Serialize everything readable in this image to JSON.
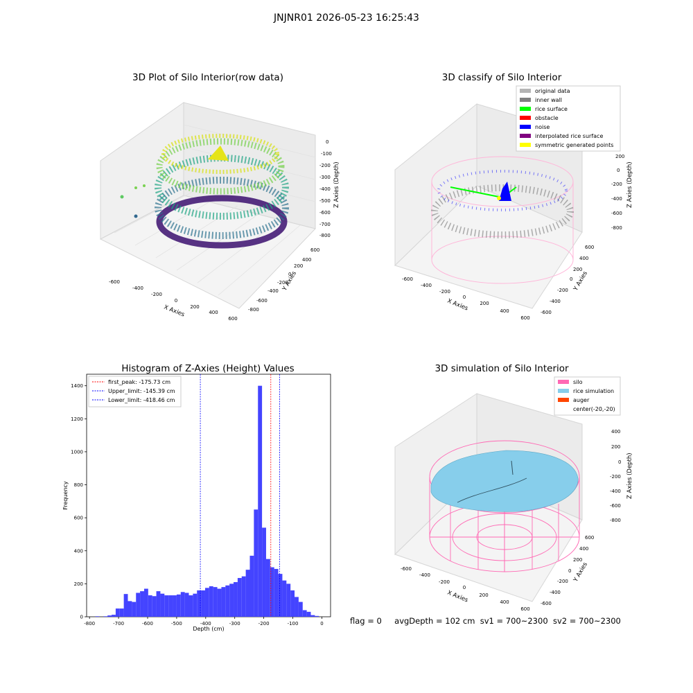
{
  "suptitle": "JNJNR01 2026-05-23 16:25:43",
  "panels": {
    "raw": {
      "title": "3D Plot of Silo Interior(row data)",
      "xlabel": "X Axies",
      "ylabel": "Y Axies",
      "zlabel": "Z Axies (Depth)",
      "xticks": [
        "-600",
        "-400",
        "-200",
        "0",
        "200",
        "400",
        "600"
      ],
      "yticks": [
        "600",
        "400",
        "200",
        "0",
        "-200",
        "-400",
        "-600",
        "-800"
      ],
      "zticks": [
        "0",
        "-100",
        "-200",
        "-300",
        "-400",
        "-500",
        "-600",
        "-700",
        "-800"
      ],
      "colormap": "viridis"
    },
    "classify": {
      "title": "3D classify of Silo Interior",
      "xlabel": "X Axies",
      "ylabel": "Y Axies",
      "zlabel": "Z Axies (Depth)",
      "xticks": [
        "-600",
        "-400",
        "-200",
        "0",
        "200",
        "400",
        "600"
      ],
      "yticks": [
        "600",
        "400",
        "200",
        "0",
        "-200",
        "-400",
        "-600"
      ],
      "zticks": [
        "200",
        "0",
        "-200",
        "-400",
        "-600",
        "-800"
      ],
      "legend": [
        {
          "label": "original data",
          "color": "#b4b4b4"
        },
        {
          "label": "inner wall",
          "color": "#808080"
        },
        {
          "label": "rice surface",
          "color": "#00ff00"
        },
        {
          "label": "obstacle",
          "color": "#ff0000"
        },
        {
          "label": "noise",
          "color": "#0000ff"
        },
        {
          "label": "interpolated rice surface",
          "color": "#800080"
        },
        {
          "label": "symmetric generated points",
          "color": "#ffff00"
        }
      ]
    },
    "histogram": {
      "title": "Histogram of Z-Axies (Height) Values",
      "xlabel": "Depth (cm)",
      "ylabel": "Frequency",
      "xticks": [
        "-800",
        "-700",
        "-600",
        "-500",
        "-400",
        "-300",
        "-200",
        "-100",
        "0"
      ],
      "yticks": [
        "0",
        "200",
        "400",
        "600",
        "800",
        "1000",
        "1200",
        "1400"
      ],
      "legend": [
        {
          "label": "first_peak: -175.73 cm",
          "color": "#ff0000"
        },
        {
          "label": "Upper_limit: -145.39 cm",
          "color": "#0000ff"
        },
        {
          "label": "Lower_limit: -418.46 cm",
          "color": "#0000ff"
        }
      ]
    },
    "simulation": {
      "title": "3D simulation of Silo Interior",
      "xlabel": "X Axies",
      "ylabel": "Y Axies",
      "zlabel": "Z Axies (Depth)",
      "xticks": [
        "-600",
        "-400",
        "-200",
        "0",
        "200",
        "400",
        "600"
      ],
      "yticks": [
        "600",
        "400",
        "200",
        "0",
        "-200",
        "-400",
        "-600"
      ],
      "zticks": [
        "400",
        "200",
        "0",
        "-200",
        "-400",
        "-600",
        "-800"
      ],
      "legend": [
        {
          "label": "silo",
          "color": "#ff69b4"
        },
        {
          "label": "rice simulation",
          "color": "#87ceeb"
        },
        {
          "label": "auger",
          "color": "#ff4500"
        },
        {
          "label": "center(-20,-20)",
          "color": ""
        }
      ]
    }
  },
  "status": {
    "flag": "flag = 0",
    "avg_depth": "avgDepth = 102 cm",
    "sv1": "sv1 = 700~2300",
    "sv2": "sv2 = 700~2300"
  },
  "chart_data": {
    "type": "bar",
    "title": "Histogram of Z-Axies (Height) Values",
    "xlabel": "Depth (cm)",
    "ylabel": "Frequency",
    "xlim": [
      -810,
      30
    ],
    "ylim": [
      0,
      1470
    ],
    "bin_width": 14,
    "bin_centers": [
      -773,
      -759,
      -745,
      -731,
      -717,
      -703,
      -689,
      -675,
      -661,
      -647,
      -633,
      -619,
      -605,
      -591,
      -577,
      -563,
      -549,
      -535,
      -521,
      -507,
      -493,
      -479,
      -465,
      -451,
      -437,
      -423,
      -409,
      -395,
      -381,
      -367,
      -353,
      -339,
      -325,
      -311,
      -297,
      -283,
      -269,
      -255,
      -241,
      -227,
      -213,
      -199,
      -185,
      -171,
      -157,
      -143,
      -129,
      -115,
      -101,
      -87,
      -73,
      -59,
      -45,
      -31,
      -17,
      -3
    ],
    "values": [
      3,
      0,
      3,
      8,
      12,
      50,
      50,
      138,
      95,
      90,
      145,
      155,
      170,
      130,
      125,
      155,
      140,
      130,
      130,
      130,
      135,
      150,
      145,
      130,
      140,
      160,
      160,
      175,
      185,
      180,
      170,
      180,
      190,
      200,
      210,
      235,
      245,
      285,
      370,
      650,
      1400,
      540,
      350,
      300,
      290,
      260,
      220,
      200,
      160,
      120,
      90,
      40,
      30,
      10,
      5,
      0
    ],
    "reference_lines": [
      {
        "label": "first_peak",
        "value": -175.73,
        "color": "#ff0000"
      },
      {
        "label": "Upper_limit",
        "value": -145.39,
        "color": "#0000ff"
      },
      {
        "label": "Lower_limit",
        "value": -418.46,
        "color": "#0000ff"
      }
    ],
    "bar_color": "#4444ff",
    "legend_position": "upper left",
    "grid": false
  }
}
